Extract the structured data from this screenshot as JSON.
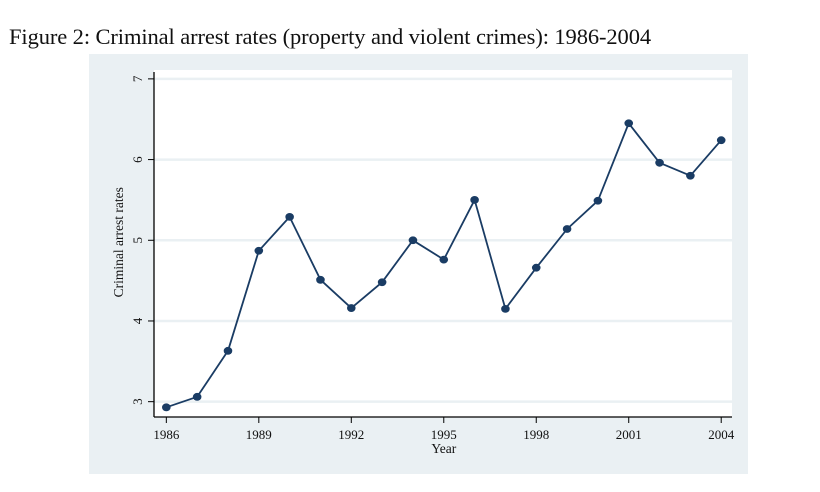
{
  "figure": {
    "title": "Figure 2: Criminal arrest rates (property and violent crimes): 1986-2004"
  },
  "colors": {
    "outer_background": "#eaf0f3",
    "plot_background": "#ffffff",
    "gridline": "#eaf0f3",
    "series": "#1a3c64",
    "axis": "#000000"
  },
  "chart_data": {
    "type": "line",
    "title": "Criminal arrest rates (property and violent crimes): 1986-2004",
    "xlabel": "Year",
    "ylabel": "Criminal arrest rates",
    "x": [
      1986,
      1987,
      1988,
      1989,
      1990,
      1991,
      1992,
      1993,
      1994,
      1995,
      1996,
      1997,
      1998,
      1999,
      2000,
      2001,
      2002,
      2003,
      2004
    ],
    "series": [
      {
        "name": "Criminal arrest rates",
        "values": [
          2.93,
          3.06,
          3.63,
          4.87,
          5.29,
          4.51,
          4.16,
          4.48,
          5.0,
          4.76,
          5.5,
          4.15,
          4.66,
          5.14,
          5.49,
          6.45,
          5.96,
          5.8,
          6.24
        ],
        "marker": "circle"
      }
    ],
    "xticks": [
      1986,
      1989,
      1992,
      1995,
      1998,
      2001,
      2004
    ],
    "xtick_labels": [
      "1986",
      "1989",
      "1992",
      "1995",
      "1998",
      "2001",
      "2004"
    ],
    "yticks": [
      3,
      4,
      5,
      6,
      7
    ],
    "ytick_labels": [
      "3",
      "4",
      "5",
      "6",
      "7"
    ],
    "xlim": [
      1985.6,
      2004.35
    ],
    "ylim": [
      2.81,
      7.11
    ],
    "grid": "horizontal",
    "legend": "none"
  }
}
